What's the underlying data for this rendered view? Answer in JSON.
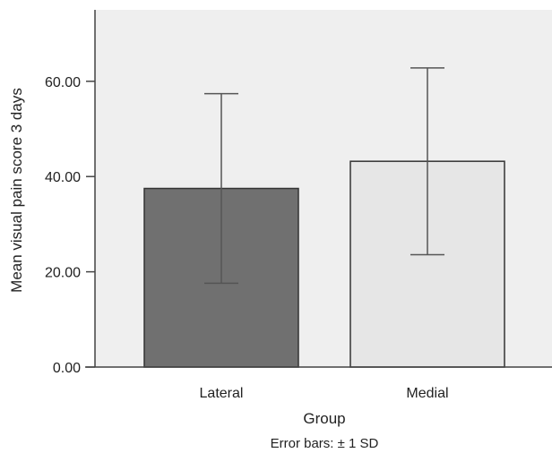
{
  "chart_data": {
    "type": "bar",
    "categories": [
      "Lateral",
      "Medial"
    ],
    "values": [
      37.5,
      43.2
    ],
    "error_sd": [
      19.9,
      19.6
    ],
    "xlabel": "Group",
    "ylabel": "Mean visual pain score 3 days",
    "ylim": [
      0,
      75
    ],
    "yticks": [
      0,
      20,
      40,
      60
    ],
    "ytick_labels": [
      "0.00",
      "20.00",
      "40.00",
      "60.00"
    ],
    "footnote": "Error bars: ± 1 SD",
    "grid": false,
    "colors": {
      "plot_background": "#efefef",
      "bars": [
        "#707070",
        "#e6e6e6"
      ],
      "bar_stroke": "#333333",
      "error_bar": "#555555",
      "axis": "#444444"
    }
  }
}
